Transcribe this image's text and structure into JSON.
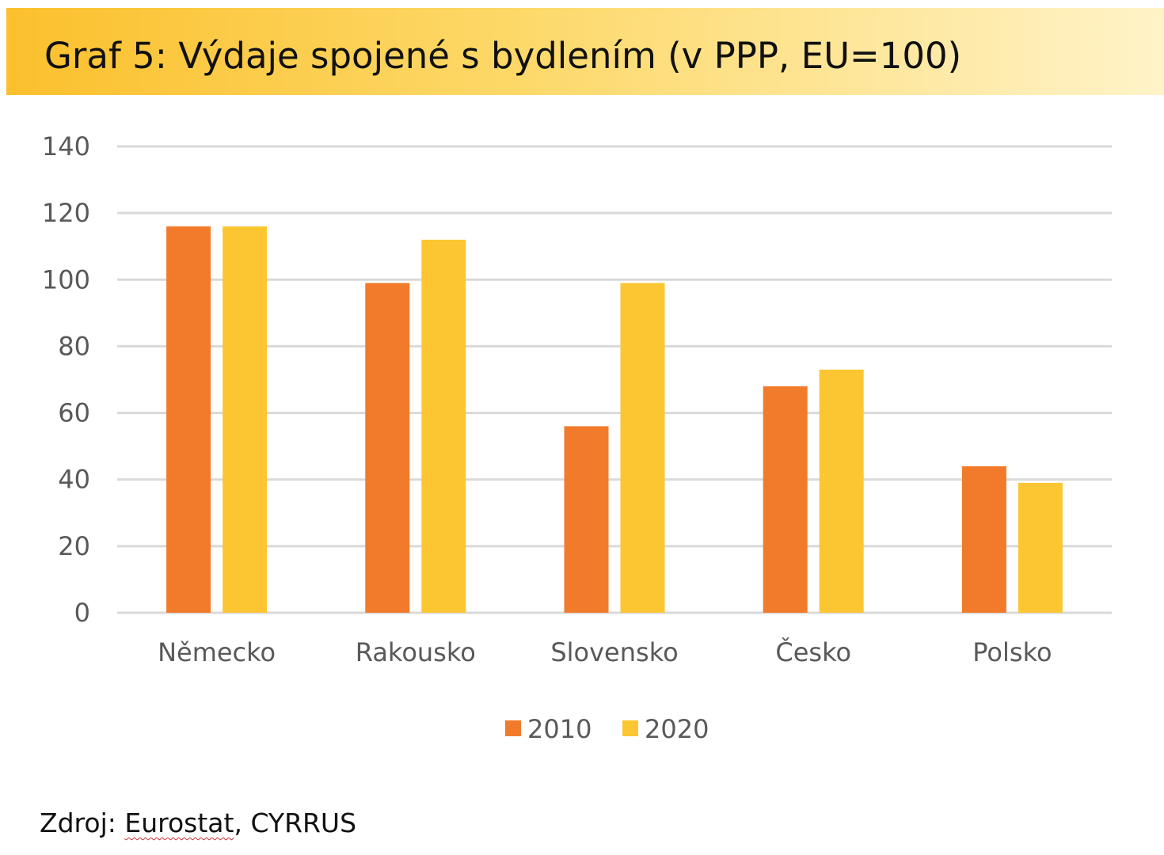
{
  "colors": {
    "series_2010": "#f27b2b",
    "series_2020": "#fcc632",
    "grid": "#d9d9d9",
    "axis_text": "#595959"
  },
  "source": {
    "prefix": "Zdroj: ",
    "link": "Eurostat",
    "suffix": ", CYRRUS"
  },
  "chart_data": {
    "type": "bar",
    "title": "Graf 5: Výdaje spojené s bydlením (v PPP, EU=100)",
    "categories": [
      "Německo",
      "Rakousko",
      "Slovensko",
      "Česko",
      "Polsko"
    ],
    "series": [
      {
        "name": "2010",
        "values": [
          116,
          99,
          56,
          68,
          44
        ]
      },
      {
        "name": "2020",
        "values": [
          116,
          112,
          99,
          73,
          39
        ]
      }
    ],
    "ylim": [
      0,
      140
    ],
    "yticks": [
      0,
      20,
      40,
      60,
      80,
      100,
      120,
      140
    ],
    "grid": true,
    "legend": "bottom-center"
  }
}
